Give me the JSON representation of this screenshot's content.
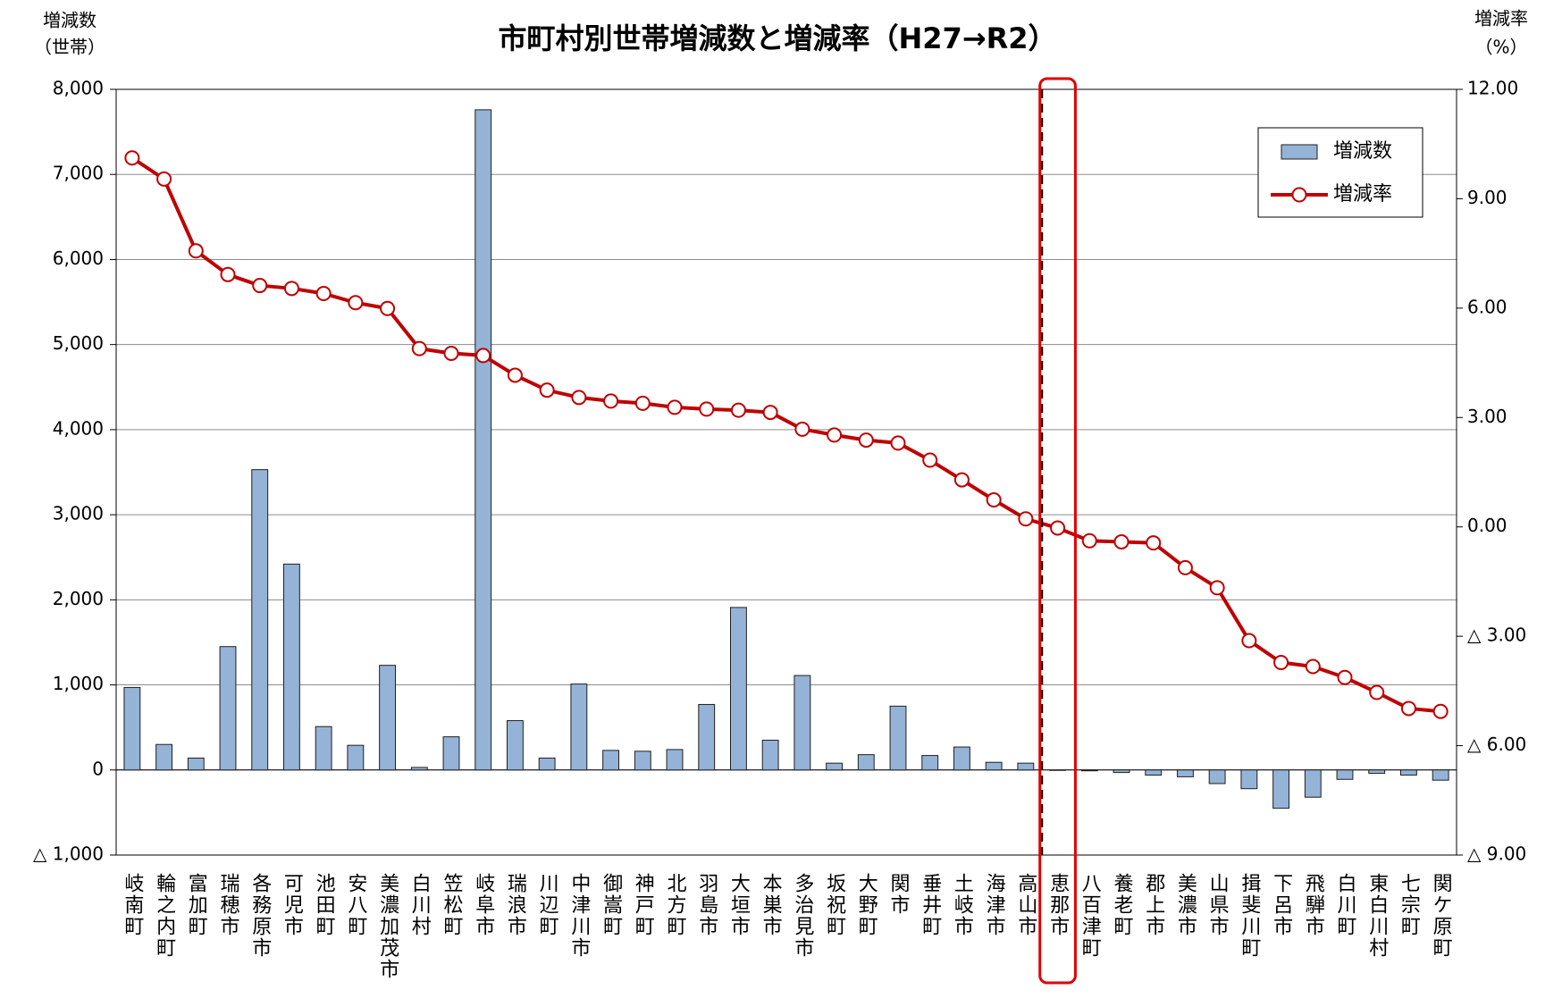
{
  "chart_data": {
    "type": "bar_line",
    "title": "市町村別世帯増減数と増減率（H27→R2）",
    "y_label": [
      "増減数",
      "（世帯）"
    ],
    "y2_label": [
      "増減率",
      "（%）"
    ],
    "categories": [
      "岐南町",
      "輪之内町",
      "富加町",
      "瑞穂市",
      "各務原市",
      "可児市",
      "池田町",
      "安八町",
      "美濃加茂市",
      "白川村",
      "笠松町",
      "岐阜市",
      "瑞浪市",
      "川辺町",
      "中津川市",
      "御嵩町",
      "神戸町",
      "北方町",
      "羽島市",
      "大垣市",
      "本巣市",
      "多治見市",
      "坂祝町",
      "大野町",
      "関市",
      "垂井町",
      "土岐市",
      "海津市",
      "高山市",
      "恵那市",
      "八百津町",
      "養老町",
      "郡上市",
      "美濃市",
      "山県市",
      "揖斐川町",
      "下呂市",
      "飛騨市",
      "白川町",
      "東白川村",
      "七宗町",
      "関ケ原町"
    ],
    "series": [
      {
        "name": "増減数",
        "type": "bar",
        "color": "#95b3d7",
        "values": [
          970,
          300,
          140,
          1450,
          3530,
          2420,
          510,
          290,
          1230,
          30,
          390,
          7760,
          580,
          140,
          1010,
          230,
          220,
          240,
          770,
          1910,
          350,
          1110,
          80,
          180,
          750,
          170,
          270,
          90,
          80,
          -5,
          -10,
          -30,
          -60,
          -80,
          -160,
          -220,
          -450,
          -320,
          -110,
          -40,
          -60,
          -120
        ]
      },
      {
        "name": "増減率",
        "type": "line",
        "color": "#c00000",
        "axis": "y2",
        "values": [
          10.12,
          9.54,
          7.57,
          6.92,
          6.62,
          6.54,
          6.4,
          6.15,
          5.99,
          4.89,
          4.76,
          4.7,
          4.16,
          3.75,
          3.55,
          3.45,
          3.39,
          3.28,
          3.23,
          3.2,
          3.14,
          2.68,
          2.52,
          2.38,
          2.3,
          1.83,
          1.29,
          0.74,
          0.22,
          -0.03,
          -0.38,
          -0.41,
          -0.44,
          -1.12,
          -1.67,
          -3.12,
          -3.72,
          -3.83,
          -4.13,
          -4.54,
          -4.98,
          -5.06
        ]
      }
    ],
    "ylim": [
      -1000,
      8000
    ],
    "yticks": [
      {
        "value": -1000,
        "label": "△ 1,000"
      },
      0,
      {
        "value": 1000,
        "label": "1,000"
      },
      {
        "value": 2000,
        "label": "2,000"
      },
      {
        "value": 3000,
        "label": "3,000"
      },
      {
        "value": 4000,
        "label": "4,000"
      },
      {
        "value": 5000,
        "label": "5,000"
      },
      {
        "value": 6000,
        "label": "6,000"
      },
      {
        "value": 7000,
        "label": "7,000"
      },
      {
        "value": 8000,
        "label": "8,000"
      }
    ],
    "y2lim": [
      -9,
      12
    ],
    "y2ticks": [
      {
        "value": -9,
        "label": "△ 9.00"
      },
      {
        "value": -6,
        "label": "△ 6.00"
      },
      {
        "value": -3,
        "label": "△ 3.00"
      },
      {
        "value": 0,
        "label": "0.00"
      },
      {
        "value": 3,
        "label": "3.00"
      },
      {
        "value": 6,
        "label": "6.00"
      },
      {
        "value": 9,
        "label": "9.00"
      },
      {
        "value": 12,
        "label": "12.00"
      }
    ],
    "grid": true,
    "legend": "upper right",
    "highlight": 29
  }
}
